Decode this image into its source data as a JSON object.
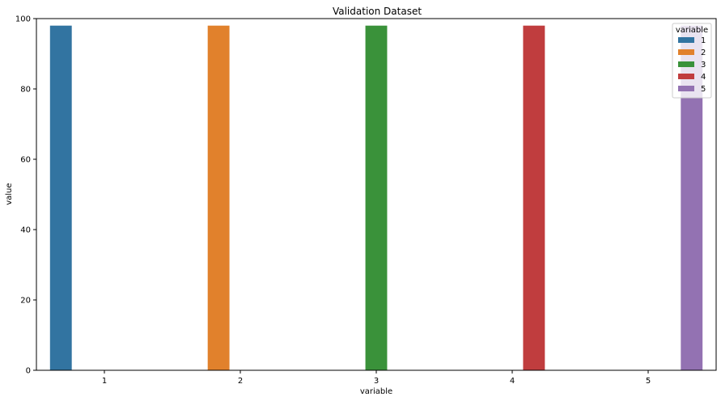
{
  "chart_data": {
    "type": "bar",
    "title": "Validation Dataset",
    "xlabel": "variable",
    "ylabel": "value",
    "categories": [
      "1",
      "2",
      "3",
      "4",
      "5"
    ],
    "ylim": [
      0,
      100
    ],
    "yticks": [
      0,
      20,
      40,
      60,
      80,
      100
    ],
    "grid": false,
    "legend": {
      "title": "variable",
      "placement": "top-right"
    },
    "series": [
      {
        "name": "1",
        "color": "#3274a1",
        "values": [
          98,
          0,
          0,
          0,
          0
        ]
      },
      {
        "name": "2",
        "color": "#e1812c",
        "values": [
          0,
          98,
          0,
          0,
          0
        ]
      },
      {
        "name": "3",
        "color": "#3a923a",
        "values": [
          0,
          0,
          98,
          0,
          0
        ]
      },
      {
        "name": "4",
        "color": "#c03d3e",
        "values": [
          0,
          0,
          0,
          98,
          0
        ]
      },
      {
        "name": "5",
        "color": "#9372b2",
        "values": [
          0,
          0,
          0,
          0,
          98
        ]
      }
    ]
  }
}
